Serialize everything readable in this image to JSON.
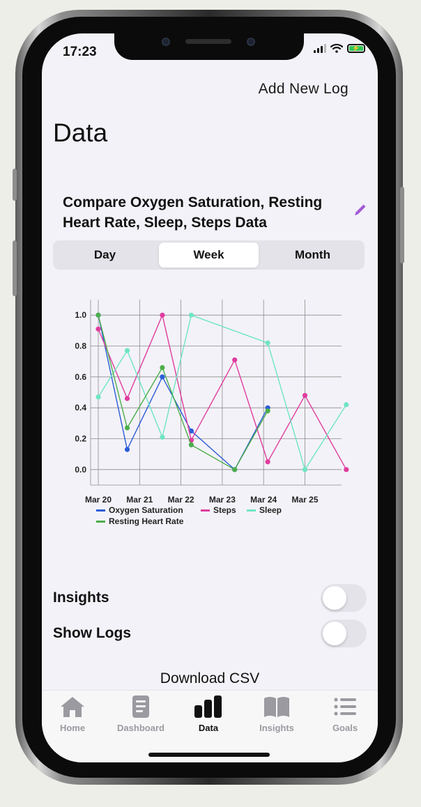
{
  "status": {
    "time": "17:23"
  },
  "header": {
    "add_log": "Add New Log"
  },
  "page": {
    "title": "Data"
  },
  "compare": {
    "title": "Compare Oxygen Saturation, Resting Heart Rate, Sleep, Steps Data"
  },
  "segments": {
    "day": "Day",
    "week": "Week",
    "month": "Month",
    "selected": "Week"
  },
  "chart_data": {
    "type": "line",
    "x": [
      "Mar 20",
      "Mar 21",
      "Mar 22",
      "Mar 23",
      "Mar 24",
      "Mar 25"
    ],
    "ylim": [
      -0.1,
      1.1
    ],
    "yticks": [
      "0.0",
      "0.2",
      "0.4",
      "0.6",
      "0.8",
      "1.0"
    ],
    "grid": true,
    "legend_position": "bottom",
    "series": [
      {
        "name": "Oxygen Saturation",
        "color": "#2b5bd7",
        "points": [
          [
            0,
            1.0
          ],
          [
            0.7,
            0.13
          ],
          [
            1.55,
            0.6
          ],
          [
            2.25,
            0.25
          ],
          [
            3.3,
            0.0
          ],
          [
            4.1,
            0.4
          ]
        ]
      },
      {
        "name": "Steps",
        "color": "#e13c9e",
        "points": [
          [
            0,
            0.91
          ],
          [
            0.7,
            0.46
          ],
          [
            1.55,
            1.0
          ],
          [
            2.25,
            0.19
          ],
          [
            3.3,
            0.71
          ],
          [
            4.1,
            0.05
          ],
          [
            5.0,
            0.48
          ],
          [
            6.0,
            0.0
          ]
        ]
      },
      {
        "name": "Sleep",
        "color": "#6fe5c4",
        "points": [
          [
            0,
            0.47
          ],
          [
            0.7,
            0.77
          ],
          [
            1.55,
            0.21
          ],
          [
            2.25,
            1.0
          ],
          [
            4.1,
            0.82
          ],
          [
            5.0,
            0.0
          ],
          [
            6.0,
            0.42
          ]
        ]
      },
      {
        "name": "Resting Heart Rate",
        "color": "#4cae4c",
        "points": [
          [
            0,
            1.0
          ],
          [
            0.7,
            0.27
          ],
          [
            1.55,
            0.66
          ],
          [
            2.25,
            0.16
          ],
          [
            3.3,
            0.0
          ],
          [
            4.1,
            0.38
          ]
        ]
      }
    ]
  },
  "insights": {
    "label": "Insights",
    "on": false
  },
  "show_logs": {
    "label": "Show Logs",
    "on": false
  },
  "download": {
    "label": "Download CSV"
  },
  "tabs": [
    {
      "label": "Home",
      "icon": "house-icon"
    },
    {
      "label": "Dashboard",
      "icon": "document-icon"
    },
    {
      "label": "Data",
      "icon": "bar-chart-icon",
      "active": true
    },
    {
      "label": "Insights",
      "icon": "book-icon"
    },
    {
      "label": "Goals",
      "icon": "list-icon"
    }
  ]
}
